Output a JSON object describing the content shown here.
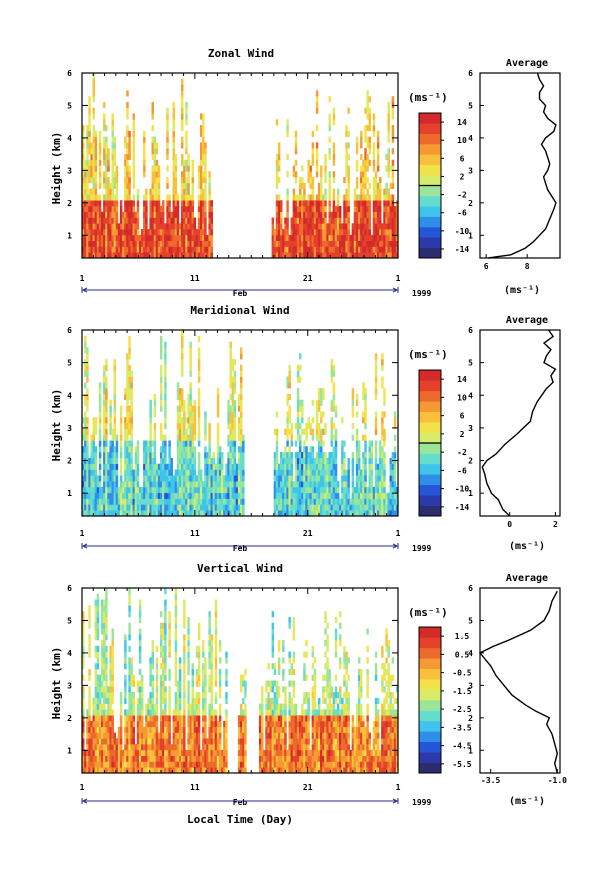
{
  "chart_data": [
    {
      "type": "heatmap",
      "title": "Zonal Wind",
      "ylabel": "Height (km)",
      "ylim": [
        0.3,
        6
      ],
      "yticks": [
        "1",
        "2",
        "3",
        "4",
        "5",
        "6"
      ],
      "xticks": [
        "1",
        "11",
        "21",
        "1"
      ],
      "month_label": "Feb",
      "year_label": "1999",
      "xlabel": "",
      "colorbar": {
        "unit": "(ms⁻¹)",
        "labels": [
          "14",
          "10",
          "6",
          "2",
          "-2",
          "-6",
          "-10",
          "-14"
        ],
        "range": [
          -16,
          16
        ],
        "zero_line": 0
      },
      "field": {
        "low_value": 12,
        "low_top_km": 2.0,
        "high_value": 4,
        "gap_days": [
          [
            12.5,
            17.8
          ]
        ],
        "dense_until_day": 12.5
      },
      "profile": {
        "title": "Average",
        "xlabel": "(ms⁻¹)",
        "xticks": [
          "6",
          "8"
        ],
        "xlim": [
          5.7,
          9.6
        ],
        "heights": [
          0.3,
          0.4,
          0.6,
          0.8,
          1.0,
          1.2,
          1.5,
          1.8,
          2.0,
          2.2,
          2.4,
          2.6,
          2.8,
          3.0,
          3.2,
          3.4,
          3.6,
          3.8,
          4.0,
          4.2,
          4.4,
          4.6,
          4.8,
          5.0,
          5.2,
          5.4,
          5.6,
          5.8,
          6.0
        ],
        "values": [
          6.1,
          7.2,
          7.9,
          8.3,
          8.6,
          8.9,
          9.1,
          9.3,
          9.4,
          9.2,
          9.0,
          8.9,
          8.8,
          9.0,
          9.1,
          9.0,
          8.9,
          8.7,
          8.9,
          9.3,
          9.4,
          9.0,
          8.8,
          8.9,
          8.6,
          8.6,
          8.8,
          8.6,
          8.5
        ]
      }
    },
    {
      "type": "heatmap",
      "title": "Meridional Wind",
      "ylabel": "Height (km)",
      "ylim": [
        0.3,
        6
      ],
      "yticks": [
        "1",
        "2",
        "3",
        "4",
        "5",
        "6"
      ],
      "xticks": [
        "1",
        "11",
        "21",
        "1"
      ],
      "month_label": "Feb",
      "year_label": "1999",
      "xlabel": "",
      "colorbar": {
        "unit": "(ms⁻¹)",
        "labels": [
          "14",
          "10",
          "6",
          "2",
          "-2",
          "-6",
          "-10",
          "-14"
        ],
        "range": [
          -16,
          16
        ],
        "zero_line": 0
      },
      "field": {
        "low_value": -4,
        "low_top_km": 2.6,
        "high_value": 2,
        "gap_days": [
          [
            15.3,
            18.0
          ]
        ],
        "dense_until_day": 15.3
      },
      "profile": {
        "title": "Average",
        "xlabel": "(ms⁻¹)",
        "xticks": [
          "0",
          "2"
        ],
        "xlim": [
          -1.3,
          2.2
        ],
        "heights": [
          0.3,
          0.5,
          0.8,
          1.0,
          1.3,
          1.6,
          1.8,
          2.0,
          2.2,
          2.5,
          2.8,
          3.0,
          3.2,
          3.5,
          3.8,
          4.0,
          4.2,
          4.4,
          4.6,
          4.8,
          5.0,
          5.2,
          5.4,
          5.6,
          5.8,
          6.0
        ],
        "values": [
          0.0,
          -0.3,
          -0.5,
          -0.8,
          -1.0,
          -1.1,
          -1.2,
          -1.0,
          -0.6,
          -0.2,
          0.3,
          0.6,
          0.9,
          1.0,
          1.2,
          1.4,
          1.6,
          1.9,
          1.8,
          2.0,
          1.5,
          1.6,
          1.8,
          1.5,
          1.9,
          1.7
        ]
      }
    },
    {
      "type": "heatmap",
      "title": "Vertical Wind",
      "ylabel": "Height (km)",
      "ylim": [
        0.3,
        6
      ],
      "yticks": [
        "1",
        "2",
        "3",
        "4",
        "5",
        "6"
      ],
      "xticks": [
        "1",
        "11",
        "21",
        "1"
      ],
      "month_label": "Feb",
      "year_label": "1999",
      "xlabel": "Local Time (Day)",
      "colorbar": {
        "unit": "(ms⁻¹)",
        "labels": [
          "1.5",
          "0.5",
          "-0.5",
          "-1.5",
          "-2.5",
          "-3.5",
          "-4.5",
          "-5.5"
        ],
        "range": [
          -6,
          2
        ],
        "zero_line": null
      },
      "field": {
        "low_value": 0.3,
        "low_top_km": 2.0,
        "high_value": -2,
        "gap_days": [
          [
            13.8,
            14.8
          ],
          [
            15.6,
            16.6
          ]
        ],
        "dense_until_day": 13.8
      },
      "profile": {
        "title": "Average",
        "xlabel": "(ms⁻¹)",
        "xticks": [
          "-3.5",
          "-1.0"
        ],
        "xlim": [
          -3.9,
          -0.9
        ],
        "heights": [
          0.3,
          0.6,
          0.9,
          1.2,
          1.5,
          1.8,
          2.0,
          2.2,
          2.4,
          2.7,
          3.0,
          3.3,
          3.6,
          3.8,
          4.0,
          4.2,
          4.4,
          4.7,
          5.0,
          5.3,
          5.6,
          5.9
        ],
        "values": [
          -1.0,
          -1.1,
          -1.0,
          -1.1,
          -1.2,
          -1.4,
          -1.3,
          -1.8,
          -2.2,
          -2.7,
          -3.0,
          -3.3,
          -3.5,
          -3.7,
          -3.9,
          -3.4,
          -2.8,
          -2.0,
          -1.5,
          -1.3,
          -1.2,
          -1.0
        ]
      }
    }
  ]
}
